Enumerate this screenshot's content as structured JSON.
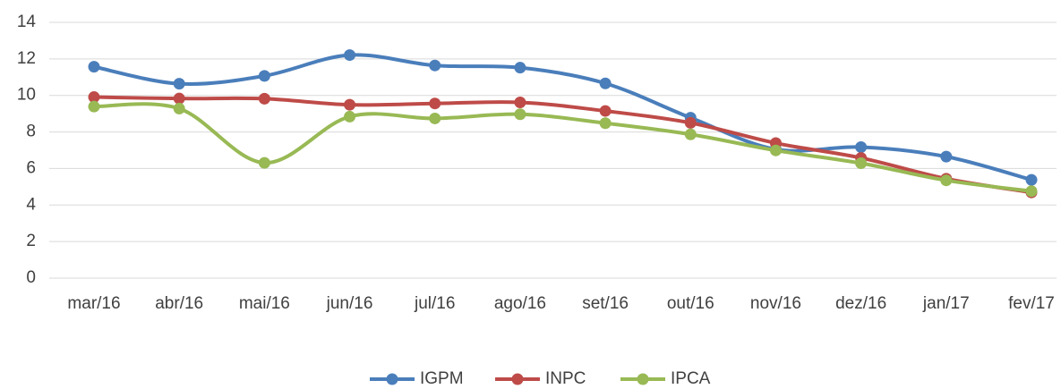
{
  "chart_data": {
    "type": "line",
    "categories": [
      "mar/16",
      "abr/16",
      "mai/16",
      "jun/16",
      "jul/16",
      "ago/16",
      "set/16",
      "out/16",
      "nov/16",
      "dez/16",
      "jan/17",
      "fev/17"
    ],
    "series": [
      {
        "name": "IGPM",
        "color": "#4a7ebb",
        "values": [
          11.57,
          10.64,
          11.07,
          12.21,
          11.64,
          11.52,
          10.66,
          8.78,
          7.05,
          7.17,
          6.65,
          5.38
        ]
      },
      {
        "name": "INPC",
        "color": "#be4b48",
        "values": [
          9.91,
          9.83,
          9.82,
          9.49,
          9.56,
          9.62,
          9.15,
          8.5,
          7.39,
          6.58,
          5.44,
          4.69
        ]
      },
      {
        "name": "IPCA",
        "color": "#98b954",
        "values": [
          9.39,
          9.28,
          6.31,
          8.84,
          8.74,
          8.97,
          8.48,
          7.87,
          6.99,
          6.29,
          5.35,
          4.76
        ]
      }
    ],
    "ylim": [
      0,
      14
    ],
    "yticks": [
      0,
      2,
      4,
      6,
      8,
      10,
      12,
      14
    ],
    "grid": true,
    "legend": "bottom"
  }
}
